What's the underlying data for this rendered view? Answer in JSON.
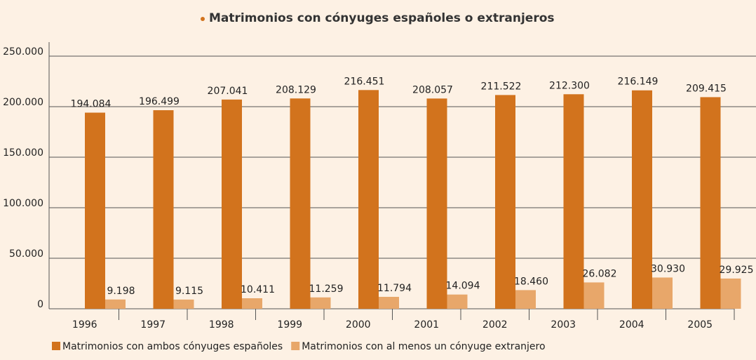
{
  "chart_data": {
    "type": "bar",
    "title": "Matrimonios con cónyuges españoles o extranjeros",
    "categories": [
      "1996",
      "1997",
      "1998",
      "1999",
      "2000",
      "2001",
      "2002",
      "2003",
      "2004",
      "2005"
    ],
    "series": [
      {
        "name": "Matrimonios con ambos cónyuges españoles",
        "color": "#d2731d",
        "values": [
          194084,
          196499,
          207041,
          208129,
          216451,
          208057,
          211522,
          212300,
          216149,
          209415
        ],
        "value_labels": [
          "194.084",
          "196.499",
          "207.041",
          "208.129",
          "216.451",
          "208.057",
          "211.522",
          "212.300",
          "216.149",
          "209.415"
        ]
      },
      {
        "name": "Matrimonios con al menos un cónyuge extranjero",
        "color": "#e8a76a",
        "values": [
          9198,
          9115,
          10411,
          11259,
          11794,
          14094,
          18460,
          26082,
          30930,
          29925
        ],
        "value_labels": [
          "9.198",
          "9.115",
          "10.411",
          "11.259",
          "11.794",
          "14.094",
          "18.460",
          "26.082",
          "30.930",
          "29.925"
        ]
      }
    ],
    "ylim": [
      0,
      250000
    ],
    "yticks": [
      0,
      {
        "value": 50000,
        "label": "50.000"
      },
      {
        "value": 100000,
        "label": "100.000"
      },
      {
        "value": 150000,
        "label": "150.000"
      },
      {
        "value": 200000,
        "label": "200.000"
      },
      {
        "value": 250000,
        "label": "250.000"
      }
    ],
    "grid": true,
    "legend": "bottom-left"
  }
}
